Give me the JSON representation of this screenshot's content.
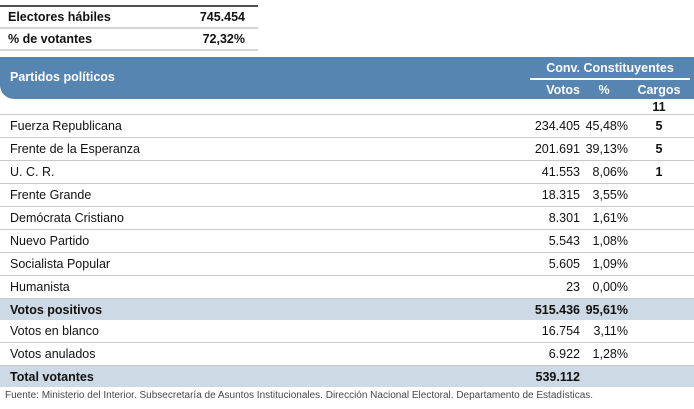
{
  "colors": {
    "header_blue": "#5685b2",
    "highlight_row": "#cdd9e4",
    "separator": "#c9c9c9"
  },
  "summary": {
    "rows": [
      {
        "label": "Electores hábiles",
        "value": "745.454"
      },
      {
        "label": "% de votantes",
        "value": "72,32%"
      }
    ]
  },
  "table": {
    "header": {
      "party_col": "Partidos políticos",
      "group": "Conv.  Constituyentes",
      "col_votos": "Votos",
      "col_pct": "%",
      "col_cargos": "Cargos",
      "total_cargos": "11"
    },
    "rows": [
      {
        "name": "Fuerza Republicana",
        "votos": "234.405",
        "pct": "45,48%",
        "cargos": "5",
        "highlight": false
      },
      {
        "name": "Frente de la Esperanza",
        "votos": "201.691",
        "pct": "39,13%",
        "cargos": "5",
        "highlight": false
      },
      {
        "name": "U. C. R.",
        "votos": "41.553",
        "pct": "8,06%",
        "cargos": "1",
        "highlight": false
      },
      {
        "name": "Frente Grande",
        "votos": "18.315",
        "pct": "3,55%",
        "cargos": "",
        "highlight": false
      },
      {
        "name": "Demócrata Cristiano",
        "votos": "8.301",
        "pct": "1,61%",
        "cargos": "",
        "highlight": false
      },
      {
        "name": "Nuevo Partido",
        "votos": "5.543",
        "pct": "1,08%",
        "cargos": "",
        "highlight": false
      },
      {
        "name": "Socialista Popular",
        "votos": "5.605",
        "pct": "1,09%",
        "cargos": "",
        "highlight": false
      },
      {
        "name": "Humanista",
        "votos": "23",
        "pct": "0,00%",
        "cargos": "",
        "highlight": false
      },
      {
        "name": "Votos positivos",
        "votos": "515.436",
        "pct": "95,61%",
        "cargos": "",
        "highlight": true
      },
      {
        "name": "Votos en blanco",
        "votos": "16.754",
        "pct": "3,11%",
        "cargos": "",
        "highlight": false
      },
      {
        "name": "Votos anulados",
        "votos": "6.922",
        "pct": "1,28%",
        "cargos": "",
        "highlight": false
      },
      {
        "name": "Total  votantes",
        "votos": "539.112",
        "pct": "",
        "cargos": "",
        "highlight": true
      }
    ]
  },
  "footer": {
    "source": "Fuente: Ministerio del Interior. Subsecretaría de Asuntos Institucionales. Dirección Nacional Electoral. Departamento de Estadísticas."
  }
}
